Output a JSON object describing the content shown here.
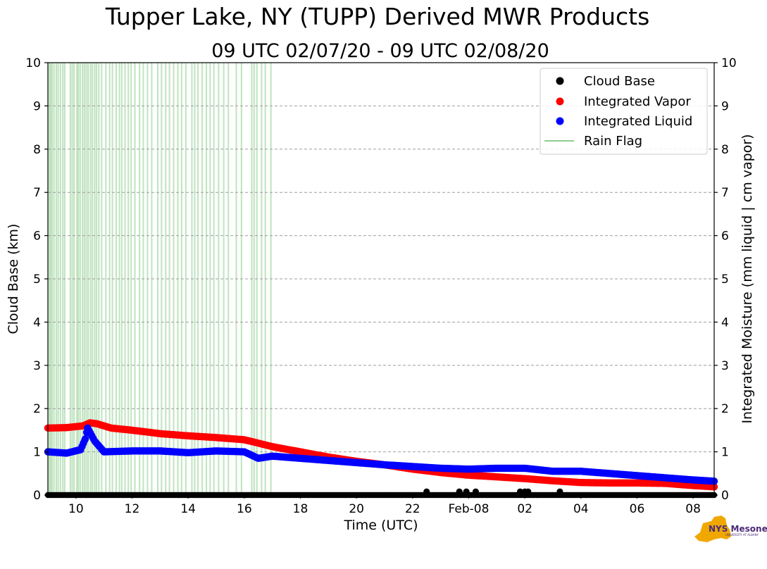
{
  "chart_data": {
    "type": "scatter",
    "title": "Tupper Lake, NY (TUPP) Derived MWR Products",
    "subtitle": "09 UTC 02/07/20 - 09 UTC 02/08/20",
    "xlabel": "Time (UTC)",
    "ylabel_left": "Cloud Base (km)",
    "ylabel_right": "Integrated Moisture (mm liquid | cm vapor)",
    "xlim": [
      "2020-02-07 09:00",
      "2020-02-08 08:45"
    ],
    "ylim": [
      0,
      10
    ],
    "yticks": [
      "0",
      "1",
      "2",
      "3",
      "4",
      "5",
      "6",
      "7",
      "8",
      "9",
      "10"
    ],
    "xticks": [
      {
        "t": "2020-02-07 10:00",
        "label": "10"
      },
      {
        "t": "2020-02-07 12:00",
        "label": "12"
      },
      {
        "t": "2020-02-07 14:00",
        "label": "14"
      },
      {
        "t": "2020-02-07 16:00",
        "label": "16"
      },
      {
        "t": "2020-02-07 18:00",
        "label": "18"
      },
      {
        "t": "2020-02-07 20:00",
        "label": "20"
      },
      {
        "t": "2020-02-07 22:00",
        "label": "22"
      },
      {
        "t": "2020-02-08 00:00",
        "label": "Feb-08"
      },
      {
        "t": "2020-02-08 02:00",
        "label": "02"
      },
      {
        "t": "2020-02-08 04:00",
        "label": "04"
      },
      {
        "t": "2020-02-08 06:00",
        "label": "06"
      },
      {
        "t": "2020-02-08 08:00",
        "label": "08"
      }
    ],
    "grid": true,
    "legend_position": "top-right",
    "series": [
      {
        "name": "Cloud Base",
        "color": "#000000",
        "marker": "circle",
        "axis": "left",
        "points": [
          [
            "2020-02-07 09:00",
            0
          ],
          [
            "2020-02-07 11:00",
            0
          ],
          [
            "2020-02-07 13:00",
            0
          ],
          [
            "2020-02-07 15:00",
            0
          ],
          [
            "2020-02-07 17:00",
            0
          ],
          [
            "2020-02-07 19:00",
            0
          ],
          [
            "2020-02-07 21:00",
            0
          ],
          [
            "2020-02-07 22:30",
            0.08
          ],
          [
            "2020-02-07 23:40",
            0.08
          ],
          [
            "2020-02-07 23:55",
            0.08
          ],
          [
            "2020-02-08 00:15",
            0.08
          ],
          [
            "2020-02-08 01:50",
            0.08
          ],
          [
            "2020-02-08 02:00",
            0.08
          ],
          [
            "2020-02-08 02:07",
            0.08
          ],
          [
            "2020-02-08 03:15",
            0.08
          ],
          [
            "2020-02-08 05:00",
            0
          ],
          [
            "2020-02-08 07:00",
            0
          ],
          [
            "2020-02-08 08:45",
            0
          ]
        ]
      },
      {
        "name": "Integrated Vapor",
        "color": "#ff0000",
        "marker": "circle",
        "axis": "right",
        "points": [
          [
            "2020-02-07 09:00",
            1.55
          ],
          [
            "2020-02-07 09:40",
            1.56
          ],
          [
            "2020-02-07 10:15",
            1.6
          ],
          [
            "2020-02-07 10:30",
            1.67
          ],
          [
            "2020-02-07 10:45",
            1.65
          ],
          [
            "2020-02-07 11:15",
            1.55
          ],
          [
            "2020-02-07 12:00",
            1.5
          ],
          [
            "2020-02-07 13:00",
            1.42
          ],
          [
            "2020-02-07 14:00",
            1.37
          ],
          [
            "2020-02-07 15:00",
            1.33
          ],
          [
            "2020-02-07 16:00",
            1.28
          ],
          [
            "2020-02-07 16:30",
            1.2
          ],
          [
            "2020-02-07 17:00",
            1.12
          ],
          [
            "2020-02-07 18:00",
            1.0
          ],
          [
            "2020-02-07 19:00",
            0.88
          ],
          [
            "2020-02-07 20:00",
            0.78
          ],
          [
            "2020-02-07 21:00",
            0.7
          ],
          [
            "2020-02-07 22:00",
            0.6
          ],
          [
            "2020-02-07 23:00",
            0.52
          ],
          [
            "2020-02-08 00:00",
            0.46
          ],
          [
            "2020-02-08 01:00",
            0.42
          ],
          [
            "2020-02-08 02:00",
            0.38
          ],
          [
            "2020-02-08 03:00",
            0.33
          ],
          [
            "2020-02-08 04:00",
            0.29
          ],
          [
            "2020-02-08 05:00",
            0.28
          ],
          [
            "2020-02-08 06:00",
            0.28
          ],
          [
            "2020-02-08 07:00",
            0.27
          ],
          [
            "2020-02-08 08:00",
            0.22
          ],
          [
            "2020-02-08 08:45",
            0.19
          ]
        ]
      },
      {
        "name": "Integrated Liquid",
        "color": "#0000ff",
        "marker": "circle",
        "axis": "right",
        "points": [
          [
            "2020-02-07 09:00",
            1.0
          ],
          [
            "2020-02-07 09:40",
            0.97
          ],
          [
            "2020-02-07 10:10",
            1.05
          ],
          [
            "2020-02-07 10:20",
            1.3
          ],
          [
            "2020-02-07 10:25",
            1.55
          ],
          [
            "2020-02-07 10:40",
            1.25
          ],
          [
            "2020-02-07 11:00",
            1.0
          ],
          [
            "2020-02-07 12:00",
            1.02
          ],
          [
            "2020-02-07 13:00",
            1.02
          ],
          [
            "2020-02-07 14:00",
            0.98
          ],
          [
            "2020-02-07 15:00",
            1.02
          ],
          [
            "2020-02-07 16:00",
            1.0
          ],
          [
            "2020-02-07 16:30",
            0.85
          ],
          [
            "2020-02-07 17:00",
            0.9
          ],
          [
            "2020-02-07 18:00",
            0.85
          ],
          [
            "2020-02-07 19:00",
            0.8
          ],
          [
            "2020-02-07 20:00",
            0.75
          ],
          [
            "2020-02-07 21:00",
            0.7
          ],
          [
            "2020-02-07 22:00",
            0.66
          ],
          [
            "2020-02-07 23:00",
            0.62
          ],
          [
            "2020-02-08 00:00",
            0.6
          ],
          [
            "2020-02-08 01:00",
            0.62
          ],
          [
            "2020-02-08 02:00",
            0.62
          ],
          [
            "2020-02-08 03:00",
            0.55
          ],
          [
            "2020-02-08 04:00",
            0.55
          ],
          [
            "2020-02-08 05:00",
            0.5
          ],
          [
            "2020-02-08 06:00",
            0.45
          ],
          [
            "2020-02-08 07:00",
            0.4
          ],
          [
            "2020-02-08 08:00",
            0.35
          ],
          [
            "2020-02-08 08:45",
            0.32
          ]
        ]
      }
    ],
    "rain_flag": {
      "name": "Rain Flag",
      "color": "#2ca02c",
      "times": [
        "2020-02-07 09:03",
        "2020-02-07 09:06",
        "2020-02-07 09:09",
        "2020-02-07 09:13",
        "2020-02-07 09:18",
        "2020-02-07 09:22",
        "2020-02-07 09:27",
        "2020-02-07 09:32",
        "2020-02-07 09:36",
        "2020-02-07 09:48",
        "2020-02-07 09:52",
        "2020-02-07 09:56",
        "2020-02-07 10:02",
        "2020-02-07 10:05",
        "2020-02-07 10:09",
        "2020-02-07 10:14",
        "2020-02-07 10:18",
        "2020-02-07 10:22",
        "2020-02-07 10:26",
        "2020-02-07 10:31",
        "2020-02-07 10:35",
        "2020-02-07 10:40",
        "2020-02-07 10:44",
        "2020-02-07 10:49",
        "2020-02-07 10:55",
        "2020-02-07 11:04",
        "2020-02-07 11:12",
        "2020-02-07 11:18",
        "2020-02-07 11:26",
        "2020-02-07 11:33",
        "2020-02-07 11:38",
        "2020-02-07 11:45",
        "2020-02-07 11:52",
        "2020-02-07 11:58",
        "2020-02-07 12:06",
        "2020-02-07 12:16",
        "2020-02-07 12:24",
        "2020-02-07 12:33",
        "2020-02-07 12:42",
        "2020-02-07 12:55",
        "2020-02-07 13:03",
        "2020-02-07 13:12",
        "2020-02-07 13:20",
        "2020-02-07 13:29",
        "2020-02-07 13:38",
        "2020-02-07 13:46",
        "2020-02-07 13:55",
        "2020-02-07 14:08",
        "2020-02-07 14:14",
        "2020-02-07 14:21",
        "2020-02-07 14:30",
        "2020-02-07 14:39",
        "2020-02-07 14:47",
        "2020-02-07 14:55",
        "2020-02-07 15:05",
        "2020-02-07 15:16",
        "2020-02-07 15:26",
        "2020-02-07 15:43",
        "2020-02-07 15:54",
        "2020-02-07 16:16",
        "2020-02-07 16:21",
        "2020-02-07 16:27",
        "2020-02-07 16:37",
        "2020-02-07 16:45",
        "2020-02-07 16:57"
      ]
    }
  },
  "logo": {
    "text": "NYS Mesonet",
    "subtext": "UNIVERSITY AT ALBANY"
  }
}
